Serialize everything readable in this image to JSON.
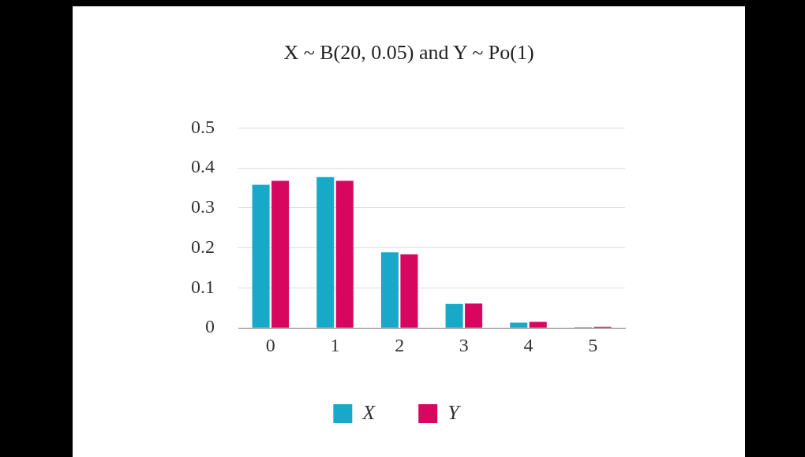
{
  "chart_data": {
    "type": "bar",
    "title": "X ~ B(20, 0.05) and Y ~ Po(1)",
    "categories": [
      "0",
      "1",
      "2",
      "3",
      "4",
      "5"
    ],
    "series": [
      {
        "name": "X",
        "color": "#18a8c8",
        "values": [
          0.358,
          0.377,
          0.189,
          0.06,
          0.013,
          0.002
        ]
      },
      {
        "name": "Y",
        "color": "#d7075f",
        "values": [
          0.368,
          0.368,
          0.184,
          0.061,
          0.015,
          0.003
        ]
      }
    ],
    "ylim": [
      0,
      0.5
    ],
    "yticks": [
      0,
      0.1,
      0.2,
      0.3,
      0.4,
      0.5
    ],
    "grid": "y",
    "legend": "bottom"
  }
}
